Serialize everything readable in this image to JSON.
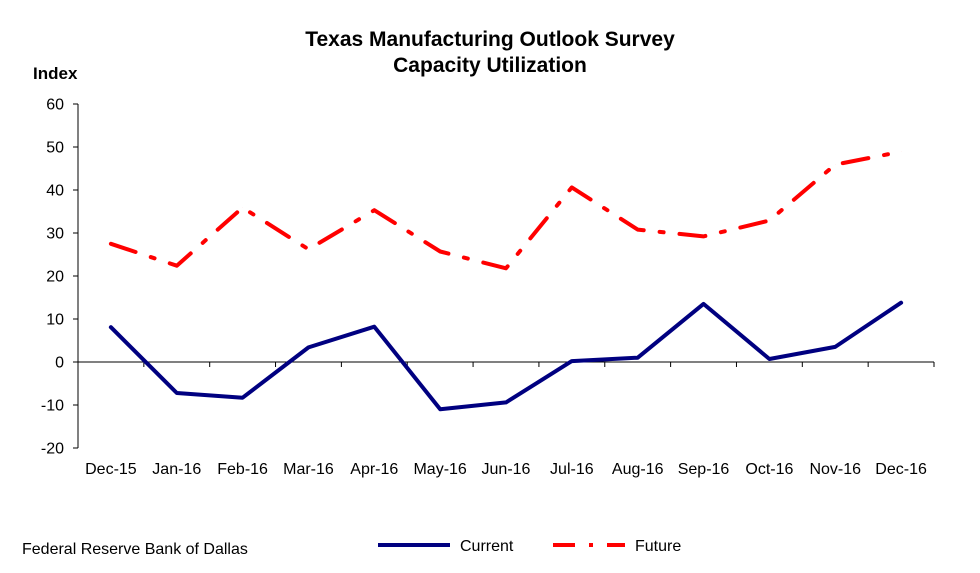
{
  "chart_data": {
    "type": "line",
    "title": "Texas Manufacturing Outlook Survey",
    "subtitle": "Capacity Utilization",
    "ylabel": "Index",
    "xlabel": "",
    "categories": [
      "Dec-15",
      "Jan-16",
      "Feb-16",
      "Mar-16",
      "Apr-16",
      "May-16",
      "Jun-16",
      "Jul-16",
      "Aug-16",
      "Sep-16",
      "Oct-16",
      "Nov-16",
      "Dec-16"
    ],
    "ylim": [
      -20,
      60
    ],
    "yticks": [
      -20,
      -10,
      0,
      10,
      20,
      30,
      40,
      50,
      60
    ],
    "grid": false,
    "legend_position": "bottom",
    "series": [
      {
        "name": "Current",
        "color": "#000080",
        "style": "solid",
        "values": [
          8.1,
          -7.2,
          -8.3,
          3.4,
          8.2,
          -11.0,
          -9.4,
          0.2,
          1.0,
          13.5,
          0.7,
          3.5,
          13.8
        ]
      },
      {
        "name": "Future",
        "color": "#ff0000",
        "style": "dash-dot",
        "values": [
          27.5,
          22.4,
          35.9,
          26.2,
          35.3,
          25.7,
          21.8,
          40.6,
          30.8,
          29.2,
          32.9,
          45.9,
          48.9
        ]
      }
    ]
  },
  "footer": {
    "source": "Federal Reserve Bank of Dallas"
  }
}
